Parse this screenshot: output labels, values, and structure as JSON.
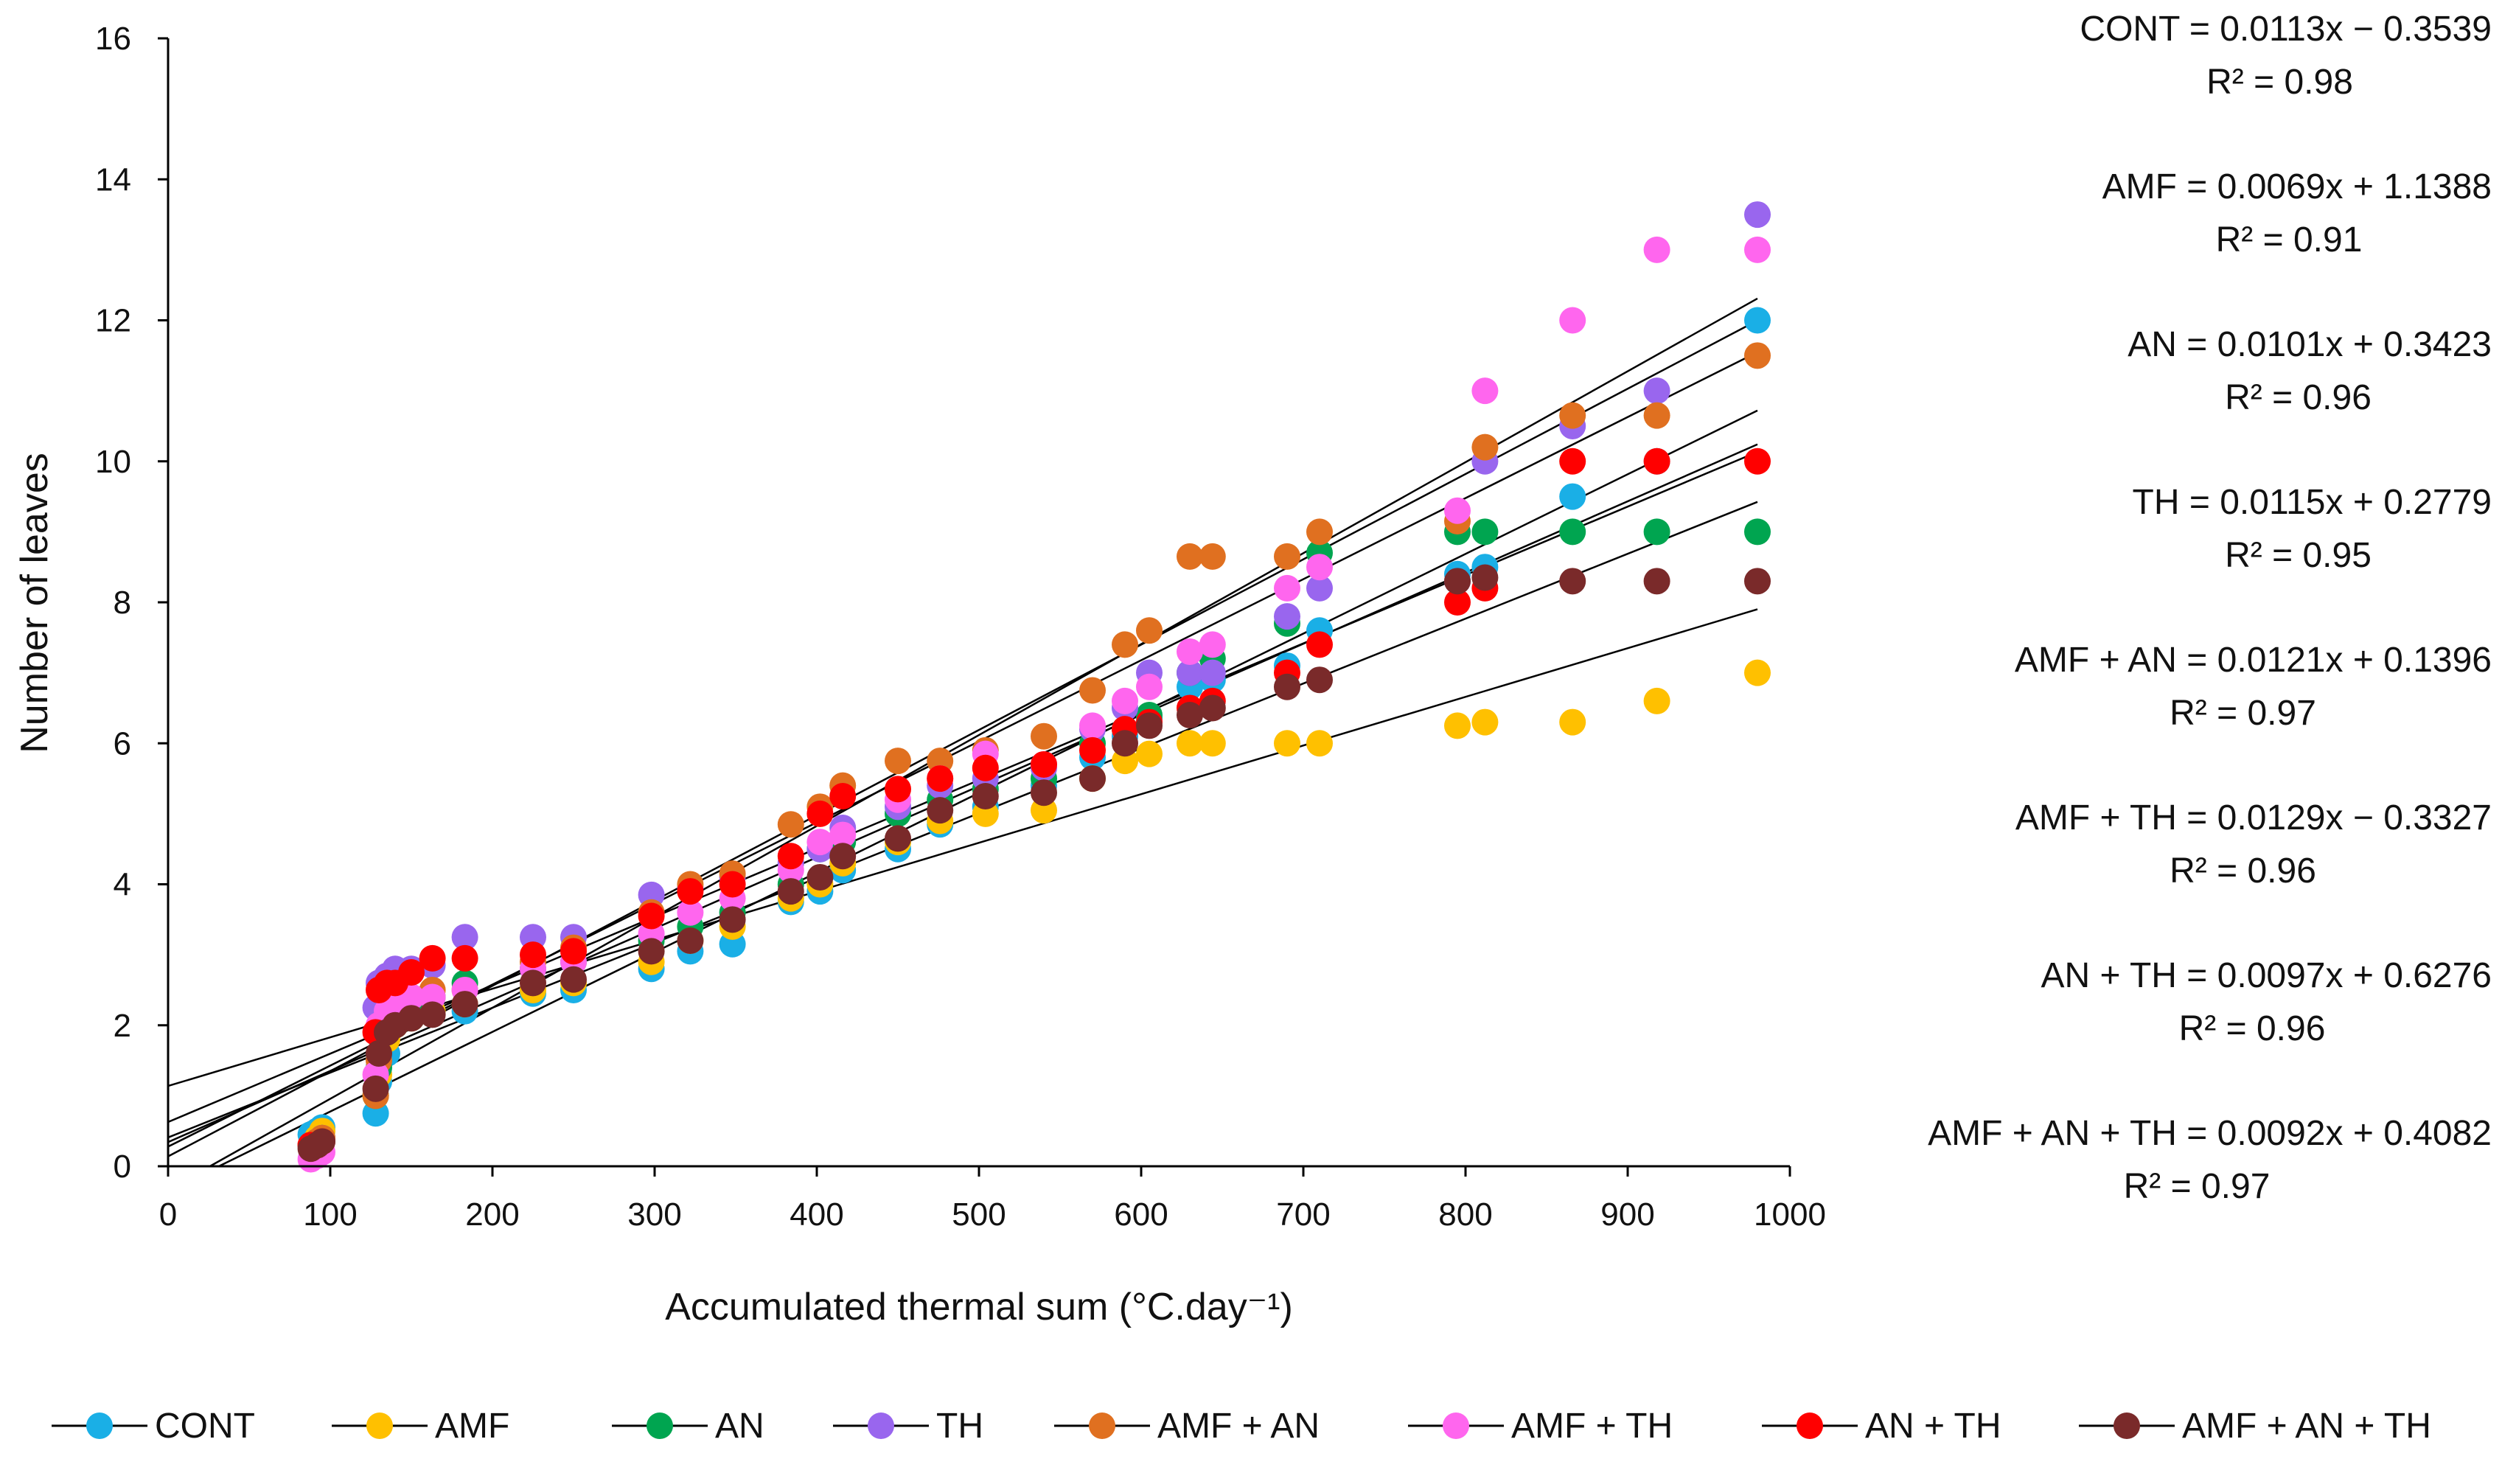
{
  "chart_data": {
    "type": "scatter",
    "title": "",
    "xlabel": "Accumulated thermal sum (°C.day⁻¹)",
    "ylabel": "Number of leaves",
    "xlim": [
      0,
      1000
    ],
    "ylim": [
      0,
      16
    ],
    "x_ticks": [
      "0",
      "100",
      "200",
      "300",
      "400",
      "500",
      "600",
      "700",
      "800",
      "900",
      "1000"
    ],
    "y_ticks": [
      "0",
      "2",
      "4",
      "6",
      "8",
      "10",
      "12",
      "14",
      "16"
    ],
    "grid": false,
    "legend_position": "bottom",
    "x": [
      88,
      92,
      95,
      128,
      130,
      135,
      140,
      150,
      163,
      183,
      225,
      250,
      298,
      322,
      348,
      384,
      402,
      416,
      450,
      476,
      504,
      540,
      570,
      590,
      605,
      630,
      644,
      690,
      710,
      795,
      812,
      866,
      918,
      980
    ],
    "series": [
      {
        "name": "CONT",
        "color": "#1aafe6",
        "slope": 0.0113,
        "intercept": -0.3539,
        "equation": "CONT = 0.0113x − 0.3539",
        "r2": "R² = 0.98",
        "values": [
          0.45,
          0.5,
          0.55,
          0.75,
          1.2,
          1.6,
          2.0,
          2.1,
          2.2,
          2.2,
          2.45,
          2.5,
          2.8,
          3.05,
          3.15,
          3.75,
          3.9,
          4.2,
          4.5,
          4.85,
          5.1,
          5.4,
          5.8,
          6.1,
          6.35,
          6.8,
          6.9,
          7.1,
          7.6,
          8.4,
          8.5,
          9.5,
          10.0,
          12.0
        ]
      },
      {
        "name": "AMF",
        "color": "#ffc000",
        "slope": 0.0069,
        "intercept": 1.1388,
        "equation": "AMF = 0.0069x + 1.1388",
        "r2": "R² = 0.91",
        "values": [
          0.3,
          0.4,
          0.5,
          1.0,
          1.3,
          1.8,
          2.0,
          2.1,
          2.2,
          2.3,
          2.5,
          2.6,
          2.9,
          3.2,
          3.4,
          3.8,
          4.0,
          4.3,
          4.6,
          4.9,
          5.0,
          5.05,
          5.5,
          5.75,
          5.85,
          6.0,
          6.0,
          6.0,
          6.0,
          6.25,
          6.3,
          6.3,
          6.6,
          7.0
        ]
      },
      {
        "name": "AN",
        "color": "#00a550",
        "slope": 0.0101,
        "intercept": 0.3423,
        "equation": "AN = 0.0101x + 0.3423",
        "r2": "R² = 0.96",
        "values": [
          0.3,
          0.35,
          0.4,
          1.0,
          1.4,
          1.9,
          2.2,
          2.3,
          2.4,
          2.6,
          2.8,
          2.9,
          3.2,
          3.4,
          3.6,
          4.0,
          4.5,
          4.6,
          5.0,
          5.2,
          5.35,
          5.5,
          6.0,
          6.2,
          6.4,
          7.0,
          7.2,
          7.7,
          8.7,
          9.0,
          9.0,
          9.0,
          9.0,
          9.0
        ]
      },
      {
        "name": "TH",
        "color": "#9966ee",
        "slope": 0.0115,
        "intercept": 0.2779,
        "equation": "TH = 0.0115x + 0.2779",
        "r2": "R² = 0.95",
        "values": [
          0.3,
          0.35,
          0.4,
          2.25,
          2.6,
          2.7,
          2.8,
          2.8,
          2.85,
          3.25,
          3.25,
          3.25,
          3.85,
          3.95,
          4.1,
          4.3,
          4.5,
          4.8,
          5.1,
          5.4,
          5.5,
          5.65,
          6.2,
          6.5,
          7.0,
          7.0,
          7.0,
          7.8,
          8.2,
          8.3,
          10.0,
          10.5,
          11.0,
          13.5
        ]
      },
      {
        "name": "AMF + AN",
        "color": "#e07020",
        "slope": 0.0121,
        "intercept": 0.1396,
        "equation": "AMF + AN = 0.0121x + 0.1396",
        "r2": "R² = 0.97",
        "values": [
          0.3,
          0.35,
          0.4,
          1.0,
          1.5,
          2.0,
          2.3,
          2.4,
          2.5,
          2.5,
          2.9,
          3.1,
          3.6,
          4.0,
          4.15,
          4.85,
          5.1,
          5.4,
          5.75,
          5.75,
          5.9,
          6.1,
          6.75,
          7.4,
          7.6,
          8.65,
          8.65,
          8.65,
          9.0,
          9.15,
          10.2,
          10.65,
          10.65,
          11.5
        ]
      },
      {
        "name": "AMF + TH",
        "color": "#ff66ee",
        "slope": 0.0129,
        "intercept": -0.3327,
        "equation": "AMF + TH = 0.0129x − 0.3327",
        "r2": "R² = 0.96",
        "values": [
          0.1,
          0.15,
          0.2,
          1.3,
          2.0,
          2.2,
          2.3,
          2.4,
          2.4,
          2.5,
          2.8,
          2.9,
          3.3,
          3.6,
          3.8,
          4.2,
          4.6,
          4.7,
          5.2,
          5.5,
          5.85,
          5.7,
          6.25,
          6.6,
          6.8,
          7.3,
          7.4,
          8.2,
          8.5,
          9.3,
          11.0,
          12.0,
          13.0,
          13.0
        ]
      },
      {
        "name": "AN + TH",
        "color": "#ff0000",
        "slope": 0.0097,
        "intercept": 0.6276,
        "equation": "AN + TH = 0.0097x + 0.6276",
        "r2": "R² = 0.96",
        "values": [
          0.3,
          0.3,
          0.35,
          1.9,
          2.5,
          2.6,
          2.6,
          2.75,
          2.95,
          2.95,
          3.0,
          3.05,
          3.55,
          3.9,
          4.0,
          4.4,
          5.0,
          5.25,
          5.35,
          5.5,
          5.65,
          5.7,
          5.9,
          6.2,
          6.3,
          6.5,
          6.6,
          7.0,
          7.4,
          8.0,
          8.2,
          10.0,
          10.0,
          10.0
        ]
      },
      {
        "name": "AMF + AN + TH",
        "color": "#7a2a2a",
        "slope": 0.0092,
        "intercept": 0.4082,
        "equation": "AMF + AN + TH = 0.0092x + 0.4082",
        "r2": "R² = 0.97",
        "values": [
          0.25,
          0.3,
          0.35,
          1.1,
          1.6,
          1.9,
          2.0,
          2.1,
          2.15,
          2.3,
          2.6,
          2.65,
          3.05,
          3.2,
          3.5,
          3.9,
          4.1,
          4.4,
          4.65,
          5.05,
          5.25,
          5.3,
          5.5,
          6.0,
          6.25,
          6.4,
          6.5,
          6.8,
          6.9,
          8.3,
          8.35,
          8.3,
          8.3,
          8.3
        ]
      }
    ]
  }
}
